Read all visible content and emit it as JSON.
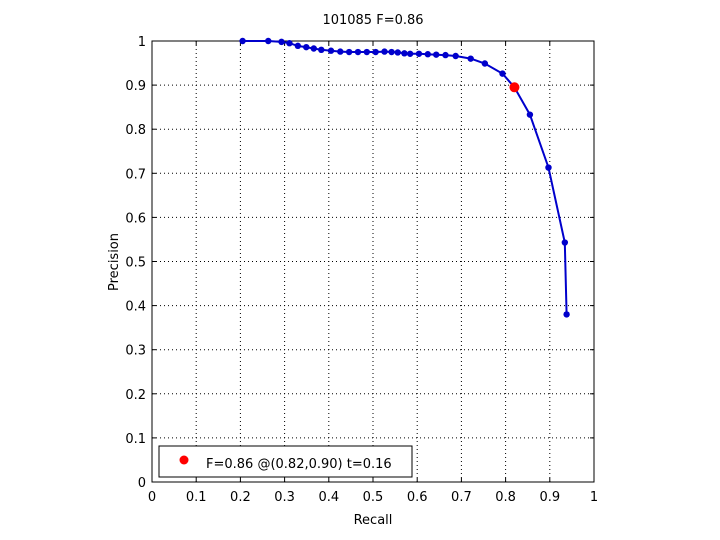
{
  "chart_data": {
    "type": "line",
    "title": "101085 F=0.86",
    "xlabel": "Recall",
    "ylabel": "Precision",
    "xlim": [
      0,
      1
    ],
    "ylim": [
      0,
      1
    ],
    "grid": true,
    "legend_position": "bottom-left",
    "xticks": [
      "0",
      "0.1",
      "0.2",
      "0.3",
      "0.4",
      "0.5",
      "0.6",
      "0.7",
      "0.8",
      "0.9",
      "1"
    ],
    "yticks": [
      "0",
      "0.1",
      "0.2",
      "0.3",
      "0.4",
      "0.5",
      "0.6",
      "0.7",
      "0.8",
      "0.9",
      "1"
    ],
    "series": [
      {
        "color": "#0000cc",
        "marker": "dot",
        "x": [
          0.205,
          0.263,
          0.293,
          0.311,
          0.33,
          0.349,
          0.366,
          0.383,
          0.405,
          0.426,
          0.446,
          0.466,
          0.486,
          0.506,
          0.526,
          0.542,
          0.556,
          0.571,
          0.584,
          0.604,
          0.624,
          0.643,
          0.664,
          0.687,
          0.721,
          0.753,
          0.793,
          0.82,
          0.855,
          0.897,
          0.934,
          0.938
        ],
        "y": [
          1.0,
          1.0,
          0.998,
          0.995,
          0.989,
          0.986,
          0.983,
          0.98,
          0.978,
          0.976,
          0.975,
          0.975,
          0.975,
          0.975,
          0.976,
          0.975,
          0.974,
          0.972,
          0.971,
          0.971,
          0.97,
          0.969,
          0.968,
          0.966,
          0.96,
          0.949,
          0.926,
          0.895,
          0.833,
          0.713,
          0.543,
          0.38
        ]
      }
    ],
    "highlight": {
      "color": "#ff0000",
      "x": 0.82,
      "y": 0.895
    },
    "legend": {
      "text": "F=0.86 @(0.82,0.90) t=0.16",
      "marker_color": "#ff0000"
    }
  }
}
